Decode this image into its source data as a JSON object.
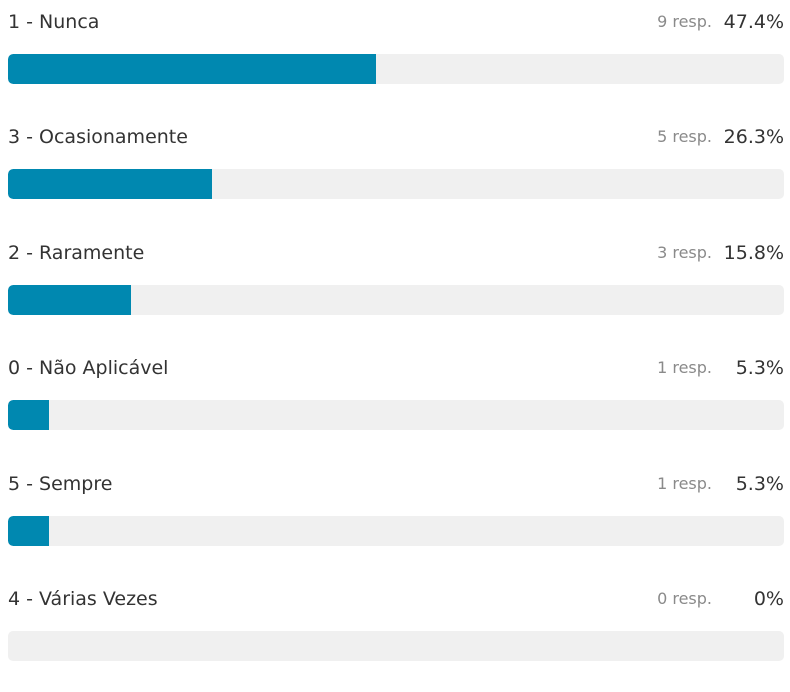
{
  "colors": {
    "bar_fill": "#0088b0",
    "bar_track": "#f0f0f0"
  },
  "options": [
    {
      "label": "1 - Nunca",
      "responses": "9 resp.",
      "percent": "47.4%",
      "value": 47.4
    },
    {
      "label": "3 - Ocasionamente",
      "responses": "5 resp.",
      "percent": "26.3%",
      "value": 26.3
    },
    {
      "label": "2 - Raramente",
      "responses": "3 resp.",
      "percent": "15.8%",
      "value": 15.8
    },
    {
      "label": "0 - Não Aplicável",
      "responses": "1 resp.",
      "percent": "5.3%",
      "value": 5.3
    },
    {
      "label": "5 - Sempre",
      "responses": "1 resp.",
      "percent": "5.3%",
      "value": 5.3
    },
    {
      "label": "4 - Várias Vezes",
      "responses": "0 resp.",
      "percent": "0%",
      "value": 0
    }
  ]
}
